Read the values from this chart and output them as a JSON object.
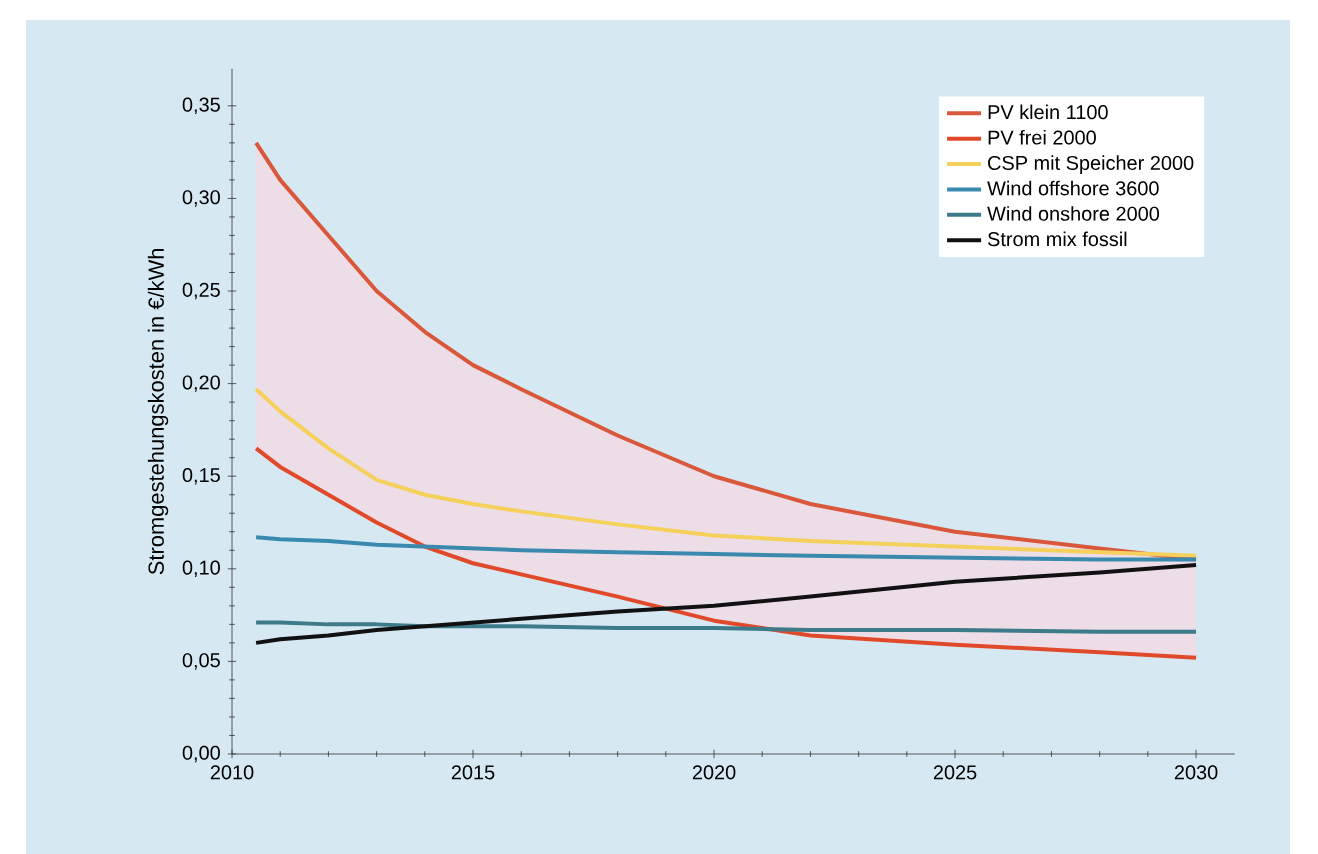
{
  "chart_data": {
    "type": "line",
    "ylabel": "Stromgestehungskosten in €/kWh",
    "xlim": [
      2010,
      2030.8
    ],
    "ylim": [
      0,
      0.37
    ],
    "xticks": [
      2010,
      2015,
      2020,
      2025,
      2030
    ],
    "yticks": [
      {
        "value": 0,
        "label": "0,00"
      },
      {
        "value": 0.05,
        "label": "0,05"
      },
      {
        "value": 0.1,
        "label": "0,10"
      },
      {
        "value": 0.15,
        "label": "0,15"
      },
      {
        "value": 0.2,
        "label": "0,20"
      },
      {
        "value": 0.25,
        "label": "0,25"
      },
      {
        "value": 0.3,
        "label": "0,30"
      },
      {
        "value": 0.35,
        "label": "0,35"
      }
    ],
    "x": [
      2010.5,
      2011,
      2012,
      2013,
      2014,
      2015,
      2016,
      2018,
      2020,
      2022,
      2025,
      2028,
      2030
    ],
    "legend": "top right",
    "series": [
      {
        "name": "PV klein 1100",
        "color": "#d9573a",
        "values": [
          0.33,
          0.31,
          0.28,
          0.25,
          0.228,
          0.21,
          0.197,
          0.172,
          0.15,
          0.135,
          0.12,
          0.111,
          0.105
        ],
        "lower": [
          0.165,
          0.155,
          0.14,
          0.125,
          0.112,
          0.103,
          0.097,
          0.085,
          0.072,
          0.064,
          0.059,
          0.055,
          0.052
        ],
        "upper": [
          0.33,
          0.31,
          0.28,
          0.25,
          0.228,
          0.21,
          0.197,
          0.172,
          0.15,
          0.135,
          0.12,
          0.111,
          0.105
        ]
      },
      {
        "name": "PV frei 2000",
        "color": "#e04a2a",
        "values": [
          0.165,
          0.155,
          0.14,
          0.125,
          0.112,
          0.103,
          0.097,
          0.085,
          0.072,
          0.064,
          0.059,
          0.055,
          0.052
        ]
      },
      {
        "name": "CSP mit Speicher 2000",
        "color": "#f5d05a",
        "values": [
          0.197,
          0.185,
          0.165,
          0.148,
          0.14,
          0.135,
          0.131,
          0.124,
          0.118,
          0.115,
          0.112,
          0.109,
          0.107
        ]
      },
      {
        "name": "Wind offshore 3600",
        "color": "#3a8ab0",
        "values": [
          0.117,
          0.116,
          0.115,
          0.113,
          0.112,
          0.111,
          0.11,
          0.109,
          0.108,
          0.107,
          0.106,
          0.105,
          0.105
        ]
      },
      {
        "name": "Wind onshore 2000",
        "color": "#3d7a8a",
        "values": [
          0.071,
          0.071,
          0.07,
          0.07,
          0.069,
          0.069,
          0.069,
          0.068,
          0.068,
          0.067,
          0.067,
          0.066,
          0.066
        ]
      },
      {
        "name": "Strom mix fossil",
        "color": "#111111",
        "values": [
          0.06,
          0.062,
          0.064,
          0.067,
          0.069,
          0.071,
          0.073,
          0.077,
          0.08,
          0.085,
          0.093,
          0.098,
          0.102
        ]
      }
    ]
  }
}
